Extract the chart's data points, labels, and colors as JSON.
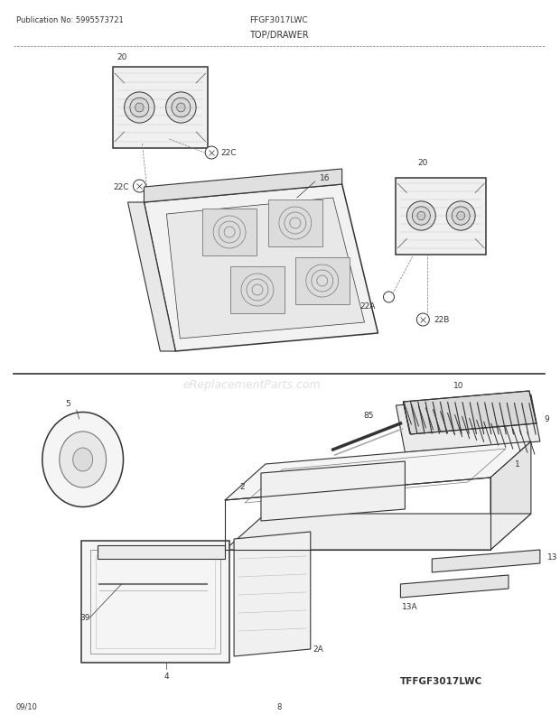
{
  "title": "TOP/DRAWER",
  "pub_no": "Publication No: 5995573721",
  "model": "FFGF3017LWC",
  "model2": "TFFGF3017LWC",
  "date": "09/10",
  "page": "8",
  "bg_color": "#ffffff",
  "watermark": "eReplacementParts.com",
  "dk": "#333333",
  "md": "#777777",
  "lt": "#bbbbbb"
}
